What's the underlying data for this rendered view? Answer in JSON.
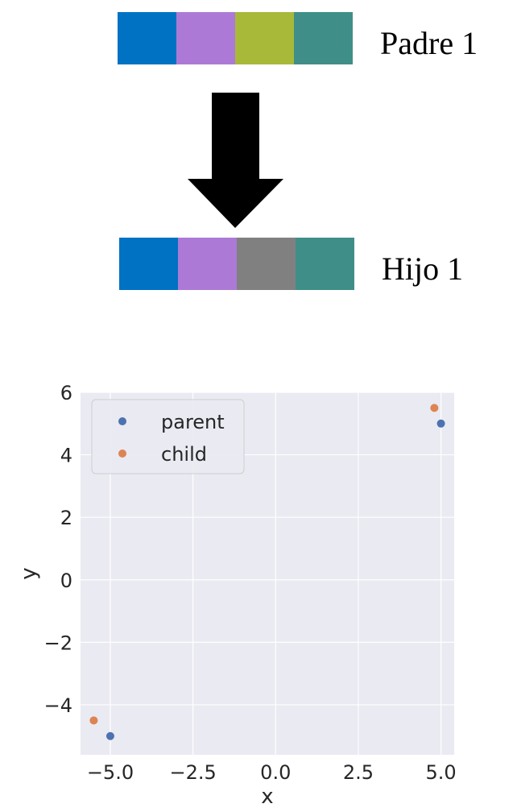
{
  "diagram": {
    "parent": {
      "label": "Padre 1",
      "genes": [
        "#0072c4",
        "#ac7ad6",
        "#a8b93a",
        "#3f8f88"
      ]
    },
    "child": {
      "label": "Hijo 1",
      "genes": [
        "#0072c4",
        "#ac7ad6",
        "#808080",
        "#3f8f88"
      ]
    },
    "arrow_color": "#000000"
  },
  "chart_data": {
    "type": "scatter",
    "title": "",
    "xlabel": "x",
    "ylabel": "y",
    "xlim": [
      -5.9,
      5.4
    ],
    "ylim": [
      -5.6,
      6.0
    ],
    "xticks": [
      -5.0,
      -2.5,
      0.0,
      2.5,
      5.0
    ],
    "xtick_labels": [
      "−5.0",
      "−2.5",
      "0.0",
      "2.5",
      "5.0"
    ],
    "yticks": [
      -4,
      -2,
      0,
      2,
      4,
      6
    ],
    "ytick_labels": [
      "−4",
      "−2",
      "0",
      "2",
      "4",
      "6"
    ],
    "grid": true,
    "legend_position": "top-left",
    "series": [
      {
        "name": "parent",
        "color": "#4c72b0",
        "points": [
          [
            -5.0,
            -5.0
          ],
          [
            5.0,
            5.0
          ]
        ]
      },
      {
        "name": "child",
        "color": "#dd8452",
        "points": [
          [
            -5.5,
            -4.5
          ],
          [
            4.8,
            5.5
          ]
        ]
      }
    ]
  }
}
